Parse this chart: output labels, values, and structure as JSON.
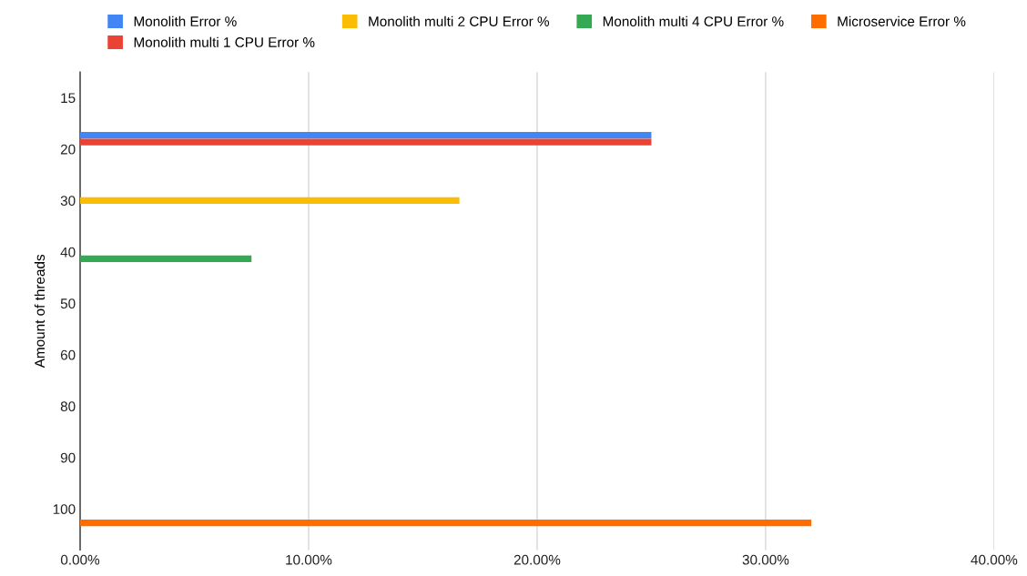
{
  "chart_data": {
    "type": "bar",
    "orientation": "horizontal",
    "ylabel": "Amount of threads",
    "categories": [
      "15",
      "20",
      "30",
      "40",
      "50",
      "60",
      "80",
      "90",
      "100"
    ],
    "series": [
      {
        "name": "Monolith Error %",
        "color": "#4285f4",
        "values": [
          null,
          25,
          null,
          null,
          null,
          null,
          null,
          null,
          null
        ]
      },
      {
        "name": "Monolith multi 1 CPU Error %",
        "color": "#ea4335",
        "values": [
          null,
          25,
          null,
          null,
          null,
          null,
          null,
          null,
          null
        ]
      },
      {
        "name": "Monolith multi 2 CPU Error %",
        "color": "#fbbc04",
        "values": [
          null,
          null,
          16.6,
          null,
          null,
          null,
          null,
          null,
          null
        ]
      },
      {
        "name": "Monolith multi 4 CPU Error %",
        "color": "#34a853",
        "values": [
          null,
          null,
          null,
          7.5,
          null,
          null,
          null,
          null,
          null
        ]
      },
      {
        "name": "Microservice Error %",
        "color": "#ff6d01",
        "values": [
          null,
          null,
          null,
          null,
          null,
          null,
          null,
          null,
          32
        ]
      }
    ],
    "xlim": [
      0,
      40
    ],
    "xticks": [
      {
        "value": 0,
        "label": "0.00%"
      },
      {
        "value": 10,
        "label": "10.00%"
      },
      {
        "value": 20,
        "label": "20.00%"
      },
      {
        "value": 30,
        "label": "30.00%"
      },
      {
        "value": 40,
        "label": "40.00%"
      }
    ],
    "grid": "x",
    "legend": "top"
  }
}
